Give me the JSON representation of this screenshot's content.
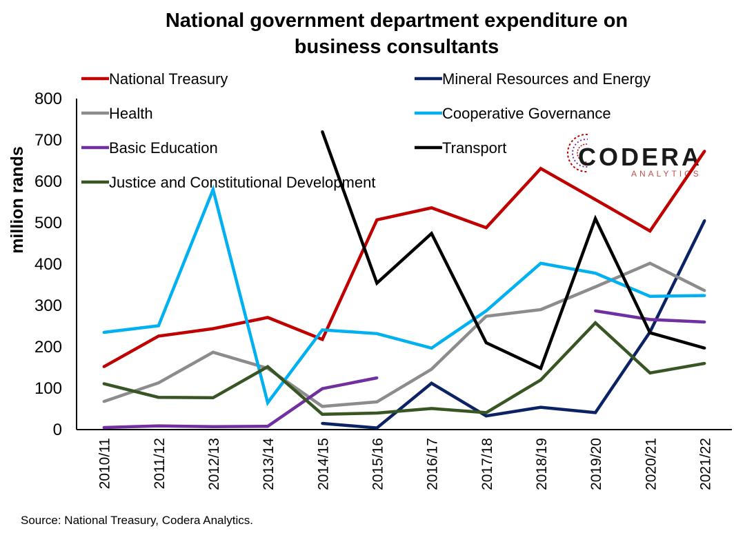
{
  "chart_data": {
    "type": "line",
    "title_lines": [
      "National government department expenditure on",
      "business consultants"
    ],
    "ylabel": "million rands",
    "ylim": [
      0,
      800
    ],
    "yticks": [
      "0",
      "100",
      "200",
      "300",
      "400",
      "500",
      "600",
      "700",
      "800"
    ],
    "categories": [
      "2010/11",
      "2011/12",
      "2012/13",
      "2013/14",
      "2014/15",
      "2015/16",
      "2016/17",
      "2017/18",
      "2018/19",
      "2019/20",
      "2020/21",
      "2021/22"
    ],
    "grid": false,
    "legend_position": "top",
    "series": [
      {
        "name": "National Treasury",
        "color": "#c00000",
        "values": [
          152,
          226,
          244,
          271,
          218,
          507,
          536,
          488,
          631,
          556,
          480,
          673
        ]
      },
      {
        "name": "Mineral Resources and Energy",
        "color": "#0b2265",
        "values": [
          null,
          null,
          null,
          null,
          15,
          4,
          112,
          33,
          54,
          41,
          236,
          505
        ]
      },
      {
        "name": "Health",
        "color": "#8c8c8c",
        "values": [
          68,
          113,
          187,
          148,
          56,
          67,
          146,
          274,
          290,
          345,
          402,
          336
        ]
      },
      {
        "name": "Cooperative Governance",
        "color": "#00b0f0",
        "values": [
          235,
          251,
          580,
          65,
          241,
          232,
          197,
          287,
          402,
          378,
          322,
          324
        ]
      },
      {
        "name": "Basic Education",
        "color": "#7030a0",
        "values": [
          5,
          9,
          7,
          8,
          99,
          125,
          null,
          null,
          null,
          287,
          266,
          260
        ]
      },
      {
        "name": "Transport",
        "color": "#000000",
        "values": [
          null,
          null,
          null,
          null,
          720,
          354,
          474,
          210,
          148,
          510,
          234,
          197
        ]
      },
      {
        "name": "Justice and Constitutional Development",
        "color": "#375623",
        "values": [
          111,
          78,
          77,
          152,
          37,
          40,
          51,
          41,
          120,
          258,
          137,
          160
        ]
      }
    ],
    "source": "Source: National Treasury, Codera Analytics."
  },
  "logo": {
    "main": "CODERA",
    "sub": "ANALYTICS"
  }
}
